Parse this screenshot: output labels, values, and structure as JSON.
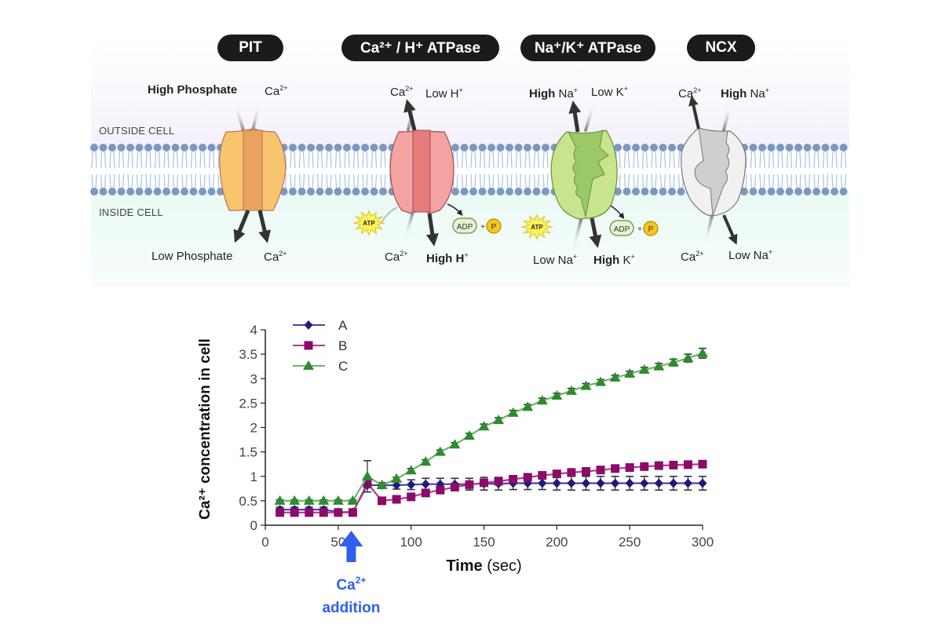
{
  "diagram": {
    "zones": {
      "outside": "OUTSIDE CELL",
      "inside": "INSIDE CELL"
    },
    "transporters": [
      {
        "name": "PIT",
        "color": "#f9c46e",
        "core_color": "#eaa35f",
        "top_labels": [
          {
            "bold": "High",
            "text": " Phosphate",
            "sup": ""
          },
          {
            "bold": "",
            "text": "Ca",
            "sup": "2+"
          }
        ],
        "bottom_labels": [
          {
            "bold": "",
            "text": "Low Phosphate",
            "sup": ""
          },
          {
            "bold": "",
            "text": "Ca",
            "sup": "2+"
          }
        ]
      },
      {
        "name": "Ca²⁺ / H⁺ ATPase",
        "color": "#f4a3a3",
        "core_color": "#e57b7b",
        "top_labels": [
          {
            "bold": "",
            "text": "Ca",
            "sup": "2+"
          },
          {
            "bold": "",
            "text": "Low H",
            "sup": "+"
          }
        ],
        "bottom_labels": [
          {
            "bold": "",
            "text": "Ca",
            "sup": "2+"
          },
          {
            "bold": "High H",
            "text": "",
            "sup": "+"
          }
        ],
        "atp": "ATP",
        "products": {
          "adp": "ADP",
          "plus": "+",
          "p": "P"
        }
      },
      {
        "name": "Na⁺/K⁺ ATPase",
        "color": "#c8e58e",
        "core_color": "#9cc968",
        "top_labels": [
          {
            "bold": "High",
            "text": " Na",
            "sup": "+"
          },
          {
            "bold": "",
            "text": "Low K",
            "sup": "+"
          }
        ],
        "bottom_labels": [
          {
            "bold": "",
            "text": "Low Na",
            "sup": "+"
          },
          {
            "bold": "High",
            "text": " K",
            "sup": "+"
          }
        ],
        "atp": "ATP",
        "products": {
          "adp": "ADP",
          "plus": "+",
          "p": "P"
        }
      },
      {
        "name": "NCX",
        "color": "#f1f1f1",
        "core_color": "#cfcfcf",
        "top_labels": [
          {
            "bold": "",
            "text": "Ca",
            "sup": "2+"
          },
          {
            "bold": "High",
            "text": " Na",
            "sup": "+"
          }
        ],
        "bottom_labels": [
          {
            "bold": "",
            "text": "Ca",
            "sup": "2+"
          },
          {
            "bold": "",
            "text": "Low Na",
            "sup": "+"
          }
        ]
      }
    ],
    "colors": {
      "lipid_head": "#7b98c0",
      "lipid_tail": "#a7c3ea",
      "outside_bg": "#f7f3fb",
      "inside_bg": "#eefaf6",
      "atp": "#fff25a",
      "p": "#f7c51e",
      "adp": "#e6f2d2"
    }
  },
  "chart_data": {
    "type": "line",
    "title": "",
    "xlabel_bold": "Time",
    "xlabel_rest": " (sec)",
    "ylabel": "Ca²⁺ concentration in cell",
    "xlim": [
      0,
      300
    ],
    "ylim": [
      0,
      4
    ],
    "xticks": [
      0,
      50,
      100,
      150,
      200,
      250,
      300
    ],
    "yticks": [
      0,
      0.5,
      1,
      1.5,
      2,
      2.5,
      3,
      3.5,
      4
    ],
    "ytick_labels": [
      "0",
      "0.5",
      "1",
      "1.5",
      "2",
      "2.5",
      "3",
      "3.5",
      "4"
    ],
    "grid": false,
    "legend_position": "top-left",
    "x": [
      10,
      20,
      30,
      40,
      50,
      60,
      70,
      80,
      90,
      100,
      110,
      120,
      130,
      140,
      150,
      160,
      170,
      180,
      190,
      200,
      210,
      220,
      230,
      240,
      250,
      260,
      270,
      280,
      290,
      300
    ],
    "series": [
      {
        "name": "A",
        "marker": "diamond",
        "color": "#1f1a7a",
        "line_color": "#4a45a8",
        "values": [
          0.32,
          0.32,
          0.32,
          0.32,
          0.27,
          0.27,
          0.82,
          0.82,
          0.82,
          0.83,
          0.84,
          0.84,
          0.84,
          0.84,
          0.85,
          0.85,
          0.86,
          0.86,
          0.86,
          0.86,
          0.86,
          0.86,
          0.86,
          0.86,
          0.86,
          0.86,
          0.86,
          0.86,
          0.86,
          0.86
        ],
        "errors": [
          0.05,
          0.05,
          0.05,
          0.05,
          0.03,
          0.03,
          0.05,
          0.05,
          0.08,
          0.1,
          0.12,
          0.12,
          0.12,
          0.12,
          0.13,
          0.13,
          0.13,
          0.13,
          0.13,
          0.14,
          0.14,
          0.14,
          0.14,
          0.14,
          0.14,
          0.14,
          0.14,
          0.14,
          0.14,
          0.14
        ]
      },
      {
        "name": "B",
        "marker": "square",
        "color": "#8b0a6a",
        "line_color": "#b03d8f",
        "values": [
          0.26,
          0.26,
          0.26,
          0.26,
          0.26,
          0.26,
          0.86,
          0.5,
          0.53,
          0.58,
          0.66,
          0.72,
          0.78,
          0.83,
          0.87,
          0.9,
          0.94,
          0.98,
          1.02,
          1.05,
          1.08,
          1.1,
          1.13,
          1.16,
          1.18,
          1.2,
          1.22,
          1.23,
          1.24,
          1.25
        ],
        "errors": [
          0.02,
          0.02,
          0.02,
          0.02,
          0.02,
          0.02,
          0.03,
          0.03,
          0.03,
          0.03,
          0.03,
          0.03,
          0.03,
          0.03,
          0.03,
          0.03,
          0.03,
          0.03,
          0.04,
          0.04,
          0.04,
          0.04,
          0.04,
          0.04,
          0.04,
          0.04,
          0.04,
          0.04,
          0.04,
          0.04
        ]
      },
      {
        "name": "C",
        "marker": "triangle",
        "color": "#2e8b2e",
        "line_color": "#6fb56a",
        "values": [
          0.5,
          0.5,
          0.5,
          0.5,
          0.5,
          0.5,
          1.0,
          0.82,
          0.95,
          1.12,
          1.3,
          1.5,
          1.65,
          1.83,
          2.02,
          2.15,
          2.3,
          2.42,
          2.55,
          2.65,
          2.75,
          2.85,
          2.93,
          3.02,
          3.1,
          3.18,
          3.25,
          3.33,
          3.42,
          3.52
        ],
        "errors": [
          0.02,
          0.02,
          0.02,
          0.02,
          0.02,
          0.02,
          0.32,
          0.03,
          0.03,
          0.04,
          0.04,
          0.04,
          0.04,
          0.05,
          0.05,
          0.05,
          0.05,
          0.05,
          0.05,
          0.05,
          0.05,
          0.05,
          0.05,
          0.05,
          0.05,
          0.05,
          0.06,
          0.07,
          0.08,
          0.1
        ]
      }
    ],
    "annotation": {
      "line1": "Ca",
      "sup": "2+",
      "line2": "addition",
      "x": 60,
      "color": "#2f5ef0"
    }
  }
}
